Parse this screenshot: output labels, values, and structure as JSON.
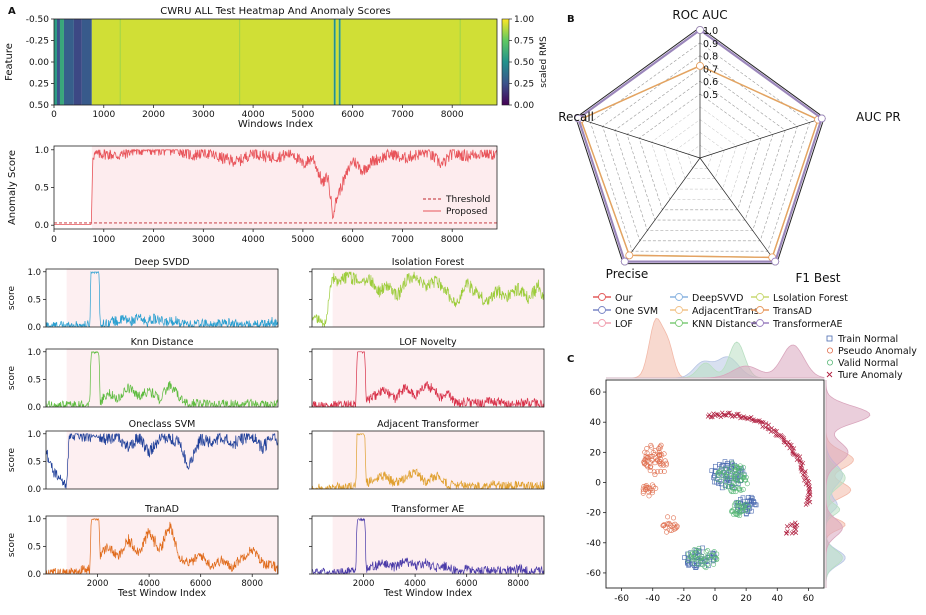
{
  "panel_letters": {
    "a": "A",
    "b": "B",
    "c": "C"
  },
  "chart_data": [
    {
      "id": "heatmap",
      "type": "heatmap",
      "title": "CWRU ALL Test Heatmap And Anomaly Scores",
      "xlabel": "Windows Index",
      "ylabel": "Feature",
      "xlim": [
        0,
        8900
      ],
      "ylim": [
        0.5,
        -0.5
      ],
      "xticks": [
        0,
        1000,
        2000,
        3000,
        4000,
        5000,
        6000,
        7000,
        8000
      ],
      "yticks": [
        -0.5,
        -0.25,
        0.0,
        0.25,
        0.5
      ],
      "ytick_labels": [
        "-0.50",
        "-0.25",
        "0.00",
        "0.25",
        "0.50"
      ],
      "colorbar": {
        "label": "scaled RMS",
        "ticks": [
          0.0,
          0.25,
          0.5,
          0.75,
          1.0
        ],
        "tick_labels": [
          "0.00",
          "0.25",
          "0.50",
          "0.75",
          "1.00"
        ],
        "colors": [
          "#440154",
          "#3b528b",
          "#21918c",
          "#5ec962",
          "#fde725"
        ]
      },
      "segments": [
        {
          "start": 0,
          "end": 60,
          "value": 0.55
        },
        {
          "start": 60,
          "end": 120,
          "value": 0.25
        },
        {
          "start": 120,
          "end": 200,
          "value": 0.6
        },
        {
          "start": 200,
          "end": 400,
          "value": 0.3
        },
        {
          "start": 400,
          "end": 560,
          "value": 0.22
        },
        {
          "start": 560,
          "end": 760,
          "value": 0.28
        },
        {
          "start": 760,
          "end": 5620,
          "value": 0.93
        },
        {
          "start": 5620,
          "end": 5660,
          "value": 0.5
        },
        {
          "start": 5660,
          "end": 5720,
          "value": 0.93
        },
        {
          "start": 5720,
          "end": 5760,
          "value": 0.55
        },
        {
          "start": 5760,
          "end": 8900,
          "value": 0.93
        }
      ]
    },
    {
      "id": "anomaly",
      "type": "line",
      "xlabel": "",
      "ylabel": "Anomaly Score",
      "xlim": [
        0,
        8900
      ],
      "ylim": [
        -0.05,
        1.05
      ],
      "xticks": [
        0,
        1000,
        2000,
        3000,
        4000,
        5000,
        6000,
        7000,
        8000
      ],
      "yticks": [
        0.0,
        0.5,
        1.0
      ],
      "ytick_labels": [
        "0.0",
        "0.5",
        "1.0"
      ],
      "threshold": 0.03,
      "legend": [
        "Threshold",
        "Proposed"
      ],
      "legend_position": "bottom-right",
      "color": "#e8545a",
      "fill": "#fdecee",
      "x": [
        0,
        750,
        780,
        1000,
        1300,
        1600,
        1900,
        2200,
        2500,
        2800,
        3000,
        3300,
        3700,
        4000,
        4300,
        4600,
        4800,
        5000,
        5200,
        5400,
        5500,
        5600,
        5700,
        5850,
        6000,
        6200,
        6400,
        6600,
        6800,
        7000,
        7200,
        7500,
        7800,
        8000,
        8300,
        8600,
        8900
      ],
      "y": [
        0.01,
        0.01,
        0.93,
        0.95,
        0.92,
        1.0,
        1.0,
        1.0,
        1.0,
        0.92,
        0.98,
        0.9,
        0.84,
        0.97,
        0.9,
        0.92,
        0.96,
        0.8,
        0.9,
        0.55,
        0.65,
        0.15,
        0.4,
        0.63,
        0.87,
        0.72,
        0.85,
        0.9,
        0.95,
        0.88,
        0.92,
        0.97,
        0.8,
        0.95,
        0.92,
        0.96,
        0.93
      ]
    },
    {
      "id": "deep_svdd",
      "type": "line",
      "title": "Deep SVDD",
      "ylabel": "score",
      "xlabel": "",
      "xlim": [
        0,
        9000
      ],
      "ylim": [
        0,
        1.05
      ],
      "yticks": [
        0.0,
        0.5,
        1.0
      ],
      "ytick_labels": [
        "0.0",
        "0.5",
        "1.0"
      ],
      "color": "#2a9fd0",
      "x": [
        0,
        800,
        1200,
        1700,
        1750,
        1800,
        2050,
        2100,
        2400,
        2600,
        2800,
        3000,
        3300,
        3600,
        3900,
        4200,
        4600,
        5000,
        5500,
        6000,
        6500,
        7000,
        7500,
        8000,
        8500,
        8800,
        9000
      ],
      "y": [
        0.02,
        0.02,
        0.02,
        0.03,
        1.0,
        1.0,
        1.0,
        0.05,
        0.06,
        0.12,
        0.09,
        0.15,
        0.1,
        0.17,
        0.09,
        0.15,
        0.08,
        0.12,
        0.04,
        0.06,
        0.03,
        0.08,
        0.04,
        0.03,
        0.05,
        0.1,
        0.03
      ]
    },
    {
      "id": "isolation_forest",
      "type": "line",
      "title": "Isolation Forest",
      "ylabel": "",
      "xlabel": "",
      "xlim": [
        0,
        9000
      ],
      "ylim": [
        0,
        1.05
      ],
      "yticks": [
        0.0,
        0.5,
        1.0
      ],
      "ytick_labels": [
        "",
        "",
        ""
      ],
      "color": "#9ccc3a",
      "x": [
        0,
        500,
        800,
        1000,
        1400,
        1800,
        2200,
        2600,
        3000,
        3300,
        3700,
        4000,
        4400,
        4800,
        5200,
        5600,
        6000,
        6400,
        6800,
        7200,
        7600,
        8000,
        8400,
        8800,
        9000
      ],
      "y": [
        0.2,
        0.05,
        0.9,
        0.75,
        0.95,
        0.8,
        0.9,
        0.65,
        0.75,
        0.55,
        0.85,
        0.95,
        0.7,
        0.85,
        0.65,
        0.4,
        0.8,
        0.6,
        0.45,
        0.65,
        0.55,
        0.7,
        0.5,
        0.75,
        0.5
      ]
    },
    {
      "id": "knn",
      "type": "line",
      "title": "Knn Distance",
      "ylabel": "score",
      "xlabel": "",
      "xlim": [
        0,
        9000
      ],
      "ylim": [
        0,
        1.05
      ],
      "yticks": [
        0.0,
        0.5,
        1.0
      ],
      "ytick_labels": [
        "0.0",
        "0.5",
        "1.0"
      ],
      "color": "#5dbb3e",
      "x": [
        0,
        800,
        1200,
        1700,
        1750,
        1800,
        2050,
        2100,
        2400,
        2800,
        3200,
        3600,
        4000,
        4400,
        4800,
        5000,
        5300,
        5600,
        6000,
        6500,
        7000,
        7500,
        8000,
        8500,
        9000
      ],
      "y": [
        0.02,
        0.02,
        0.03,
        0.05,
        1.0,
        1.0,
        1.0,
        0.1,
        0.25,
        0.15,
        0.35,
        0.2,
        0.3,
        0.15,
        0.4,
        0.3,
        0.1,
        0.05,
        0.08,
        0.03,
        0.05,
        0.04,
        0.06,
        0.03,
        0.04
      ]
    },
    {
      "id": "lof",
      "type": "line",
      "title": "LOF Novelty",
      "ylabel": "",
      "xlabel": "",
      "xlim": [
        0,
        9000
      ],
      "ylim": [
        0,
        1.05
      ],
      "yticks": [
        0.0,
        0.5,
        1.0
      ],
      "ytick_labels": [
        "",
        "",
        ""
      ],
      "color": "#d8324a",
      "x": [
        0,
        800,
        1200,
        1700,
        1750,
        1800,
        2050,
        2100,
        2400,
        2800,
        3200,
        3600,
        4000,
        4400,
        4800,
        5000,
        5300,
        5600,
        6000,
        6500,
        7000,
        7500,
        8000,
        8500,
        9000
      ],
      "y": [
        0.02,
        0.02,
        0.03,
        0.05,
        1.0,
        1.0,
        1.0,
        0.1,
        0.2,
        0.3,
        0.15,
        0.35,
        0.2,
        0.4,
        0.3,
        0.15,
        0.25,
        0.05,
        0.1,
        0.05,
        0.12,
        0.04,
        0.06,
        0.08,
        0.04
      ]
    },
    {
      "id": "ocsvm",
      "type": "line",
      "title": "Oneclass SVM",
      "ylabel": "score",
      "xlabel": "",
      "xlim": [
        0,
        9000
      ],
      "ylim": [
        0,
        1.05
      ],
      "yticks": [
        0.0,
        0.5,
        1.0
      ],
      "ytick_labels": [
        "0.0",
        "0.5",
        "1.0"
      ],
      "color": "#1f3f99",
      "x": [
        0,
        300,
        600,
        800,
        900,
        1200,
        1600,
        2000,
        2400,
        2800,
        3200,
        3600,
        4000,
        4400,
        4800,
        5200,
        5500,
        5700,
        6000,
        6400,
        6800,
        7200,
        7600,
        8000,
        8400,
        8800,
        9000
      ],
      "y": [
        0.7,
        0.3,
        0.15,
        0.05,
        0.95,
        0.92,
        0.98,
        0.95,
        0.9,
        0.97,
        0.75,
        0.95,
        0.65,
        0.93,
        0.9,
        0.85,
        0.4,
        0.6,
        0.9,
        0.85,
        0.95,
        0.8,
        0.92,
        0.97,
        0.75,
        0.93,
        0.9
      ]
    },
    {
      "id": "adjacent",
      "type": "line",
      "title": "Adjacent Transformer",
      "ylabel": "",
      "xlabel": "",
      "xlim": [
        0,
        9000
      ],
      "ylim": [
        0,
        1.05
      ],
      "yticks": [
        0.0,
        0.5,
        1.0
      ],
      "ytick_labels": [
        "",
        "",
        ""
      ],
      "color": "#e0a030",
      "x": [
        0,
        800,
        1200,
        1700,
        1750,
        1800,
        2050,
        2100,
        2400,
        2800,
        3200,
        3600,
        4000,
        4400,
        4800,
        5200,
        5600,
        6000,
        6500,
        7000,
        7500,
        8000,
        8500,
        9000
      ],
      "y": [
        0.02,
        0.02,
        0.03,
        0.05,
        1.0,
        1.0,
        1.0,
        0.1,
        0.15,
        0.25,
        0.1,
        0.2,
        0.3,
        0.12,
        0.25,
        0.1,
        0.05,
        0.08,
        0.04,
        0.1,
        0.05,
        0.07,
        0.04,
        0.06
      ]
    },
    {
      "id": "tranad",
      "type": "line",
      "title": "TranAD",
      "ylabel": "score",
      "xlabel": "Test Window Index",
      "xlim": [
        0,
        9000
      ],
      "ylim": [
        0,
        1.05
      ],
      "yticks": [
        0.0,
        0.5,
        1.0
      ],
      "ytick_labels": [
        "0.0",
        "0.5",
        "1.0"
      ],
      "xticks": [
        2000,
        4000,
        6000,
        8000
      ],
      "xtick_labels": [
        "2000",
        "4000",
        "6000",
        "8000"
      ],
      "color": "#e06a1a",
      "x": [
        0,
        800,
        1200,
        1700,
        1750,
        1800,
        2050,
        2100,
        2400,
        2800,
        3200,
        3600,
        4000,
        4400,
        4800,
        5000,
        5200,
        5600,
        6000,
        6400,
        6800,
        7200,
        7600,
        8000,
        8400,
        8800,
        9000
      ],
      "y": [
        0.02,
        0.02,
        0.05,
        0.1,
        1.0,
        1.0,
        1.0,
        0.35,
        0.5,
        0.3,
        0.6,
        0.4,
        0.75,
        0.45,
        0.85,
        0.6,
        0.3,
        0.2,
        0.35,
        0.15,
        0.25,
        0.12,
        0.3,
        0.45,
        0.2,
        0.15,
        0.1
      ]
    },
    {
      "id": "transformer_ae",
      "type": "line",
      "title": "Transformer AE",
      "ylabel": "",
      "xlabel": "Test Window Index",
      "xlim": [
        0,
        9000
      ],
      "ylim": [
        0,
        1.05
      ],
      "yticks": [
        0.0,
        0.5,
        1.0
      ],
      "ytick_labels": [
        "",
        "",
        ""
      ],
      "xticks": [
        2000,
        4000,
        6000,
        8000
      ],
      "xtick_labels": [
        "2000",
        "4000",
        "6000",
        "8000"
      ],
      "color": "#4a3aa8",
      "x": [
        0,
        800,
        1200,
        1700,
        1750,
        1800,
        2050,
        2100,
        2400,
        2800,
        3200,
        3600,
        4000,
        4400,
        4800,
        5200,
        5600,
        6000,
        6500,
        7000,
        7500,
        8000,
        8500,
        9000
      ],
      "y": [
        0.02,
        0.02,
        0.03,
        0.05,
        1.0,
        1.0,
        1.0,
        0.1,
        0.15,
        0.2,
        0.12,
        0.25,
        0.15,
        0.2,
        0.1,
        0.15,
        0.05,
        0.08,
        0.04,
        0.06,
        0.05,
        0.1,
        0.04,
        0.05
      ]
    },
    {
      "id": "radar",
      "type": "radar",
      "axes": [
        "ROC AUC",
        "AUC PR",
        "F1 Best",
        "Precise",
        "Recall"
      ],
      "rlim": [
        0.5,
        1.0
      ],
      "rticks": [
        0.5,
        0.6,
        0.7,
        0.8,
        0.9,
        1.0
      ],
      "rtick_labels": [
        "0.5",
        "0.6",
        "0.7",
        "0.8",
        "0.9",
        "1.0"
      ],
      "series": [
        {
          "name": "Our",
          "color": "#e35b5b",
          "marker": "square",
          "values": [
            1.0,
            1.0,
            1.0,
            1.0,
            1.0
          ]
        },
        {
          "name": "One SVM",
          "color": "#7a86c6",
          "marker": "triangle-left",
          "values": [
            1.0,
            1.0,
            1.0,
            1.0,
            1.0
          ]
        },
        {
          "name": "LOF",
          "color": "#f0a0b0",
          "marker": "diamond",
          "values": [
            1.0,
            1.0,
            1.0,
            1.0,
            1.0
          ]
        },
        {
          "name": "DeepSVVD",
          "color": "#8ab4e0",
          "marker": "circle",
          "values": [
            1.0,
            1.0,
            1.0,
            1.0,
            1.0
          ]
        },
        {
          "name": "AdjacentTrans",
          "color": "#f2c38a",
          "marker": "triangle-right",
          "values": [
            1.0,
            1.0,
            1.0,
            1.0,
            1.0
          ]
        },
        {
          "name": "KNN Distance",
          "color": "#7ecb78",
          "marker": "triangle-down",
          "values": [
            1.0,
            1.0,
            1.0,
            1.0,
            1.0
          ]
        },
        {
          "name": "Lsolation Forest",
          "color": "#c8d870",
          "marker": "triangle-up",
          "values": [
            0.72,
            0.97,
            0.96,
            0.94,
            0.98
          ]
        },
        {
          "name": "TransAD",
          "color": "#e89a60",
          "marker": "circle",
          "values": [
            0.72,
            0.97,
            0.96,
            0.94,
            0.98
          ]
        },
        {
          "name": "TransformerAE",
          "color": "#9b80c0",
          "marker": "star",
          "values": [
            1.0,
            1.0,
            1.0,
            1.0,
            1.0
          ]
        }
      ]
    },
    {
      "id": "tsne",
      "type": "scatter",
      "xlim": [
        -70,
        70
      ],
      "ylim": [
        -70,
        68
      ],
      "xticks": [
        -60,
        -40,
        -20,
        0,
        20,
        40,
        60
      ],
      "yticks": [
        -60,
        -40,
        -20,
        0,
        20,
        40,
        60
      ],
      "legend_position": "top-right",
      "series": [
        {
          "name": "Train Normal",
          "color": "#4a6ab0",
          "marker": "square",
          "clusters": [
            {
              "cx": 8,
              "cy": 5,
              "rx": 11,
              "ry": 9,
              "n": 70
            },
            {
              "cx": 20,
              "cy": -15,
              "rx": 7,
              "ry": 6,
              "n": 40
            },
            {
              "cx": -10,
              "cy": -50,
              "rx": 10,
              "ry": 7,
              "n": 45
            }
          ]
        },
        {
          "name": "Pseudo Anomaly",
          "color": "#e07050",
          "marker": "circle",
          "clusters": [
            {
              "cx": -38,
              "cy": 15,
              "rx": 8,
              "ry": 11,
              "n": 60
            },
            {
              "cx": -42,
              "cy": -5,
              "rx": 5,
              "ry": 4,
              "n": 20
            },
            {
              "cx": -29,
              "cy": -28,
              "rx": 5,
              "ry": 6,
              "n": 20
            }
          ]
        },
        {
          "name": "Valid Normal",
          "color": "#5ab878",
          "marker": "circle",
          "clusters": [
            {
              "cx": 12,
              "cy": 3,
              "rx": 11,
              "ry": 10,
              "n": 65
            },
            {
              "cx": 16,
              "cy": -18,
              "rx": 6,
              "ry": 5,
              "n": 30
            },
            {
              "cx": -8,
              "cy": -50,
              "rx": 10,
              "ry": 7,
              "n": 40
            }
          ]
        },
        {
          "name": "Ture Anomaly",
          "color": "#b02040",
          "marker": "x",
          "arc": {
            "cx": 5,
            "cy": -10,
            "r": 55,
            "a0": 100,
            "a1": -5,
            "n": 110
          }
        }
      ],
      "marginal_note": "kernel density on top and right margins"
    }
  ]
}
